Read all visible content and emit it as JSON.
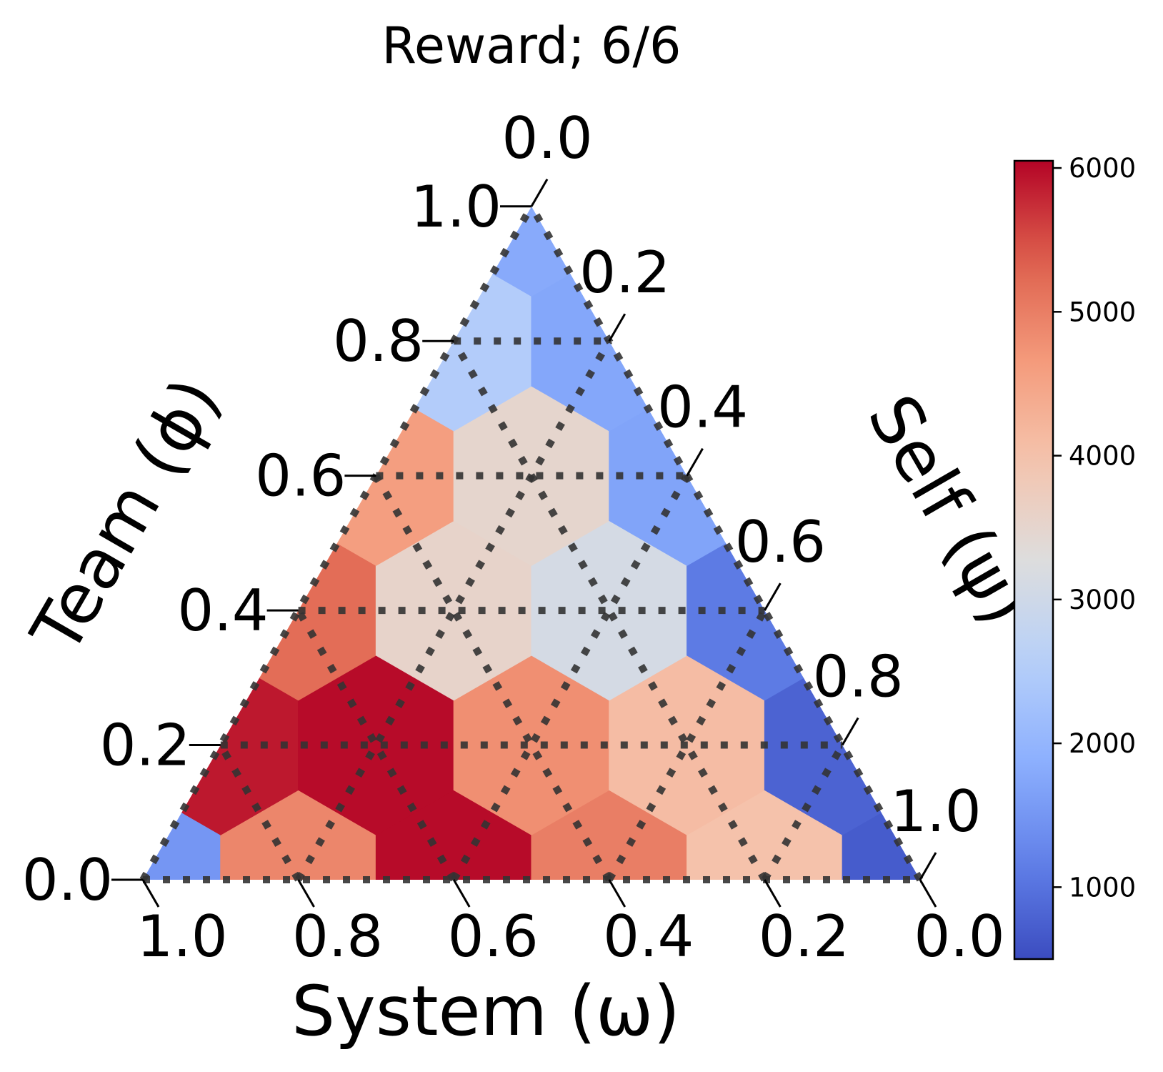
{
  "chart_data": {
    "type": "heatmap",
    "subtype": "ternary-hexbin",
    "title": "Reward; 6/6",
    "axes": {
      "bottom": {
        "label": "System (ω)",
        "ticks": [
          "1.0",
          "0.8",
          "0.6",
          "0.4",
          "0.2",
          "0.0"
        ]
      },
      "left": {
        "label": "Team (ϕ)",
        "ticks": [
          "0.0",
          "0.2",
          "0.4",
          "0.6",
          "0.8",
          "1.0"
        ]
      },
      "right": {
        "label": "Self (ψ)",
        "ticks": [
          "0.0",
          "0.2",
          "0.4",
          "0.6",
          "0.8",
          "1.0"
        ]
      }
    },
    "grid": true,
    "colormap": "coolwarm",
    "colorbar": {
      "vmin": 500,
      "vmax": 6050,
      "ticks": [
        "1000",
        "2000",
        "3000",
        "4000",
        "5000",
        "6000"
      ],
      "tick_values": [
        1000,
        2000,
        3000,
        4000,
        5000,
        6000
      ]
    },
    "cells": [
      {
        "system": 1.0,
        "team": 0.0,
        "self": 0.0,
        "value": 1500
      },
      {
        "system": 0.8,
        "team": 0.0,
        "self": 0.2,
        "value": 4900
      },
      {
        "system": 0.6,
        "team": 0.0,
        "self": 0.4,
        "value": 6000
      },
      {
        "system": 0.4,
        "team": 0.0,
        "self": 0.6,
        "value": 5000
      },
      {
        "system": 0.2,
        "team": 0.0,
        "self": 0.8,
        "value": 4000
      },
      {
        "system": 0.0,
        "team": 0.0,
        "self": 1.0,
        "value": 700
      },
      {
        "system": 0.8,
        "team": 0.2,
        "self": 0.0,
        "value": 5900
      },
      {
        "system": 0.6,
        "team": 0.2,
        "self": 0.2,
        "value": 6000
      },
      {
        "system": 0.4,
        "team": 0.2,
        "self": 0.4,
        "value": 4800
      },
      {
        "system": 0.2,
        "team": 0.2,
        "self": 0.6,
        "value": 4100
      },
      {
        "system": 0.0,
        "team": 0.2,
        "self": 0.8,
        "value": 800
      },
      {
        "system": 0.6,
        "team": 0.4,
        "self": 0.0,
        "value": 5200
      },
      {
        "system": 0.4,
        "team": 0.4,
        "self": 0.2,
        "value": 3550
      },
      {
        "system": 0.2,
        "team": 0.4,
        "self": 0.4,
        "value": 3100
      },
      {
        "system": 0.0,
        "team": 0.4,
        "self": 0.6,
        "value": 1100
      },
      {
        "system": 0.4,
        "team": 0.6,
        "self": 0.0,
        "value": 4600
      },
      {
        "system": 0.2,
        "team": 0.6,
        "self": 0.2,
        "value": 3500
      },
      {
        "system": 0.0,
        "team": 0.6,
        "self": 0.4,
        "value": 1700
      },
      {
        "system": 0.2,
        "team": 0.8,
        "self": 0.0,
        "value": 2500
      },
      {
        "system": 0.0,
        "team": 0.8,
        "self": 0.2,
        "value": 1750
      },
      {
        "system": 0.0,
        "team": 1.0,
        "self": 0.0,
        "value": 1800
      }
    ]
  }
}
